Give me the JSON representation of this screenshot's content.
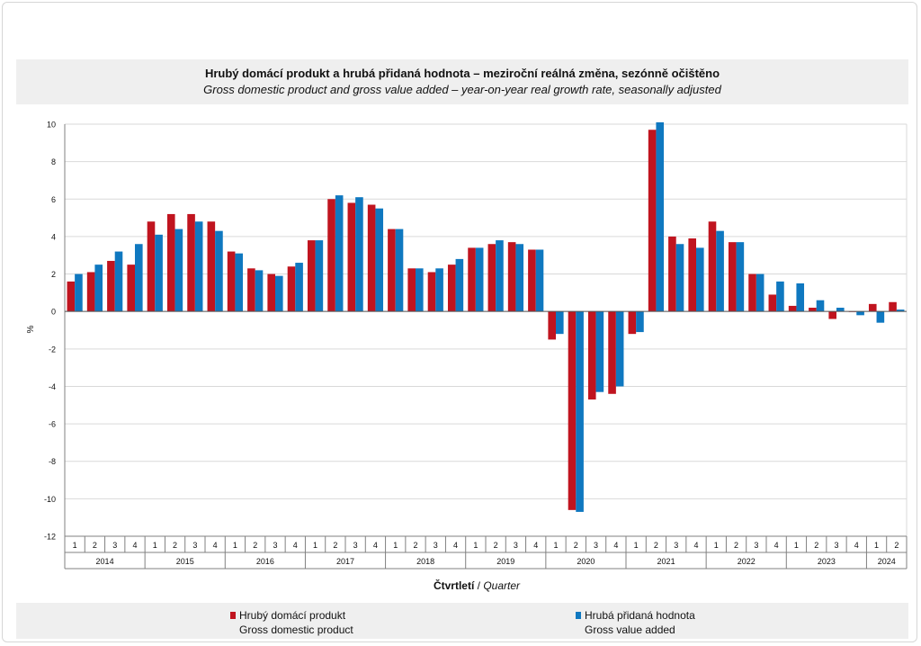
{
  "title_cz": "Hrubý domácí produkt a hrubá přidaná hodnota – meziroční reálná změna, sezónně očištěno",
  "title_en": "Gross domestic product and gross value added – year-on-year real growth rate, seasonally adjusted",
  "colors": {
    "gdp": "#c0141f",
    "gva": "#0f78c0",
    "grid": "#d9d9d9",
    "axis": "#808080"
  },
  "axis": {
    "ylabel": "%",
    "xlabel_cz": "Čtvrtletí",
    "xlabel_sep": " / ",
    "xlabel_en": "Quarter"
  },
  "legend": {
    "gdp_cz": "Hrubý domácí produkt",
    "gdp_en": "Gross domestic product",
    "gva_cz": "Hrubá přidaná hodnota",
    "gva_en": "Gross value added"
  },
  "chart_data": {
    "type": "bar",
    "ylim": [
      -12,
      10
    ],
    "yticks": [
      10,
      8,
      6,
      4,
      2,
      0,
      -2,
      -4,
      -6,
      -8,
      -10,
      -12
    ],
    "grid": true,
    "legend_position": "bottom",
    "years": [
      {
        "label": "2014",
        "quarters": 4
      },
      {
        "label": "2015",
        "quarters": 4
      },
      {
        "label": "2016",
        "quarters": 4
      },
      {
        "label": "2017",
        "quarters": 4
      },
      {
        "label": "2018",
        "quarters": 4
      },
      {
        "label": "2019",
        "quarters": 4
      },
      {
        "label": "2020",
        "quarters": 4
      },
      {
        "label": "2021",
        "quarters": 4
      },
      {
        "label": "2022",
        "quarters": 4
      },
      {
        "label": "2023",
        "quarters": 4
      },
      {
        "label": "2024",
        "quarters": 2
      }
    ],
    "categories": [
      "1",
      "2",
      "3",
      "4",
      "1",
      "2",
      "3",
      "4",
      "1",
      "2",
      "3",
      "4",
      "1",
      "2",
      "3",
      "4",
      "1",
      "2",
      "3",
      "4",
      "1",
      "2",
      "3",
      "4",
      "1",
      "2",
      "3",
      "4",
      "1",
      "2",
      "3",
      "4",
      "1",
      "2",
      "3",
      "4",
      "1",
      "2",
      "3",
      "4",
      "1",
      "2"
    ],
    "series": [
      {
        "name": "Hrubý domácí produkt",
        "values": [
          1.6,
          2.1,
          2.7,
          2.5,
          4.8,
          5.2,
          5.2,
          4.8,
          3.2,
          2.3,
          2.0,
          2.4,
          3.8,
          6.0,
          5.8,
          5.7,
          4.4,
          2.3,
          2.1,
          2.5,
          3.4,
          3.6,
          3.7,
          3.3,
          -1.5,
          -10.6,
          -4.7,
          -4.4,
          -1.2,
          9.7,
          4.0,
          3.9,
          4.8,
          3.7,
          2.0,
          0.9,
          0.3,
          0.2,
          -0.4,
          0.0,
          0.4,
          0.5
        ]
      },
      {
        "name": "Hrubá přidaná hodnota",
        "values": [
          2.0,
          2.5,
          3.2,
          3.6,
          4.1,
          4.4,
          4.8,
          4.3,
          3.1,
          2.2,
          1.9,
          2.6,
          3.8,
          6.2,
          6.1,
          5.5,
          4.4,
          2.3,
          2.3,
          2.8,
          3.4,
          3.8,
          3.6,
          3.3,
          -1.2,
          -10.7,
          -4.3,
          -4.0,
          -1.1,
          10.1,
          3.6,
          3.4,
          4.3,
          3.7,
          2.0,
          1.6,
          1.5,
          0.6,
          0.2,
          -0.2,
          -0.6,
          0.1
        ]
      }
    ]
  }
}
